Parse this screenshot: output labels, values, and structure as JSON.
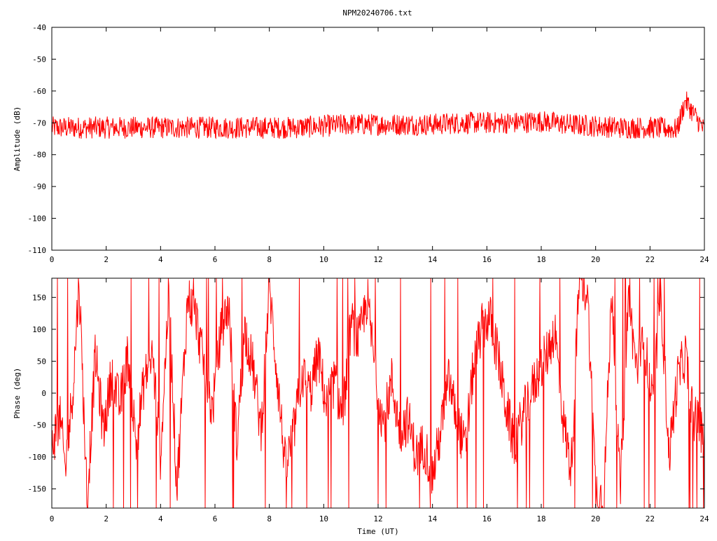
{
  "title": "NPM20240706.txt",
  "chart_data": [
    {
      "type": "line",
      "title": "NPM20240706.txt",
      "xlabel": "",
      "ylabel": "Amplitude (dB)",
      "xlim": [
        0,
        24
      ],
      "ylim": [
        -110,
        -40
      ],
      "x_ticks": [
        0,
        2,
        4,
        6,
        8,
        10,
        12,
        14,
        16,
        18,
        20,
        22,
        24
      ],
      "y_ticks": [
        -40,
        -50,
        -60,
        -70,
        -80,
        -90,
        -100,
        -110
      ],
      "y_tick_labels": [
        "-40",
        "-50",
        "-60",
        "-70",
        "-80",
        "-90",
        "-100",
        "-110"
      ],
      "color": "#ff0000",
      "grid": false,
      "series": [
        {
          "x": [
            0,
            1,
            2,
            3,
            4,
            5,
            6,
            7,
            8,
            9,
            10,
            11,
            12,
            13,
            14,
            15,
            16,
            17,
            18,
            19,
            20,
            21,
            22,
            23,
            23.3,
            24
          ],
          "y": [
            -71.5,
            -71.5,
            -71.5,
            -71.5,
            -71.5,
            -71.5,
            -71.5,
            -71.5,
            -71.5,
            -71.5,
            -71,
            -70.5,
            -70.5,
            -70.5,
            -70.5,
            -70,
            -70,
            -70,
            -69.5,
            -70.5,
            -71,
            -71.5,
            -71.5,
            -72,
            -63,
            -72.5
          ],
          "noise_band": 3.5
        }
      ]
    },
    {
      "type": "line",
      "title": "",
      "xlabel": "Time (UT)",
      "ylabel": "Phase (deg)",
      "xlim": [
        0,
        24
      ],
      "ylim": [
        -180,
        180
      ],
      "x_ticks": [
        0,
        2,
        4,
        6,
        8,
        10,
        12,
        14,
        16,
        18,
        20,
        22,
        24
      ],
      "y_ticks": [
        150,
        100,
        50,
        0,
        -50,
        -100,
        -150
      ],
      "y_tick_labels": [
        "150",
        "100",
        "50",
        "0",
        "-50",
        "-100",
        "-150"
      ],
      "color": "#ff0000",
      "grid": false,
      "series": [
        {
          "x": [
            0,
            0.3,
            0.5,
            0.8,
            1.0,
            1.3,
            1.6,
            1.9,
            2.2,
            2.5,
            2.8,
            3.1,
            3.4,
            3.7,
            4.0,
            4.3,
            4.6,
            5.0,
            5.3,
            5.6,
            5.9,
            6.2,
            6.5,
            6.8,
            7.1,
            7.4,
            7.7,
            8.0,
            8.3,
            8.6,
            8.9,
            9.2,
            9.5,
            9.8,
            10.1,
            10.4,
            10.7,
            11.0,
            11.3,
            11.6,
            11.9,
            12.2,
            12.5,
            12.8,
            13.1,
            13.4,
            13.7,
            14.0,
            14.3,
            14.6,
            14.9,
            15.2,
            15.5,
            15.8,
            16.1,
            16.4,
            16.7,
            17.0,
            17.3,
            17.6,
            17.9,
            18.2,
            18.5,
            18.8,
            19.1,
            19.4,
            19.7,
            20.0,
            20.3,
            20.6,
            20.9,
            21.2,
            21.5,
            21.8,
            22.1,
            22.4,
            22.7,
            23.0,
            23.3,
            23.6,
            24.0
          ],
          "y": [
            -80,
            -40,
            -120,
            20,
            180,
            -170,
            60,
            -60,
            30,
            -20,
            60,
            -80,
            20,
            60,
            -100,
            160,
            -150,
            150,
            120,
            40,
            -30,
            90,
            140,
            -80,
            100,
            40,
            -60,
            170,
            20,
            -120,
            -60,
            30,
            0,
            60,
            -20,
            20,
            -40,
            110,
            80,
            150,
            30,
            -50,
            20,
            -60,
            -40,
            -100,
            -80,
            -130,
            -60,
            20,
            -40,
            -90,
            40,
            100,
            120,
            60,
            -20,
            -80,
            -40,
            0,
            30,
            60,
            100,
            -40,
            -120,
            180,
            160,
            -150,
            -170,
            170,
            -160,
            150,
            40,
            80,
            -20,
            160,
            -100,
            20,
            60,
            -40,
            -60
          ],
          "jitter": 40
        }
      ]
    }
  ]
}
